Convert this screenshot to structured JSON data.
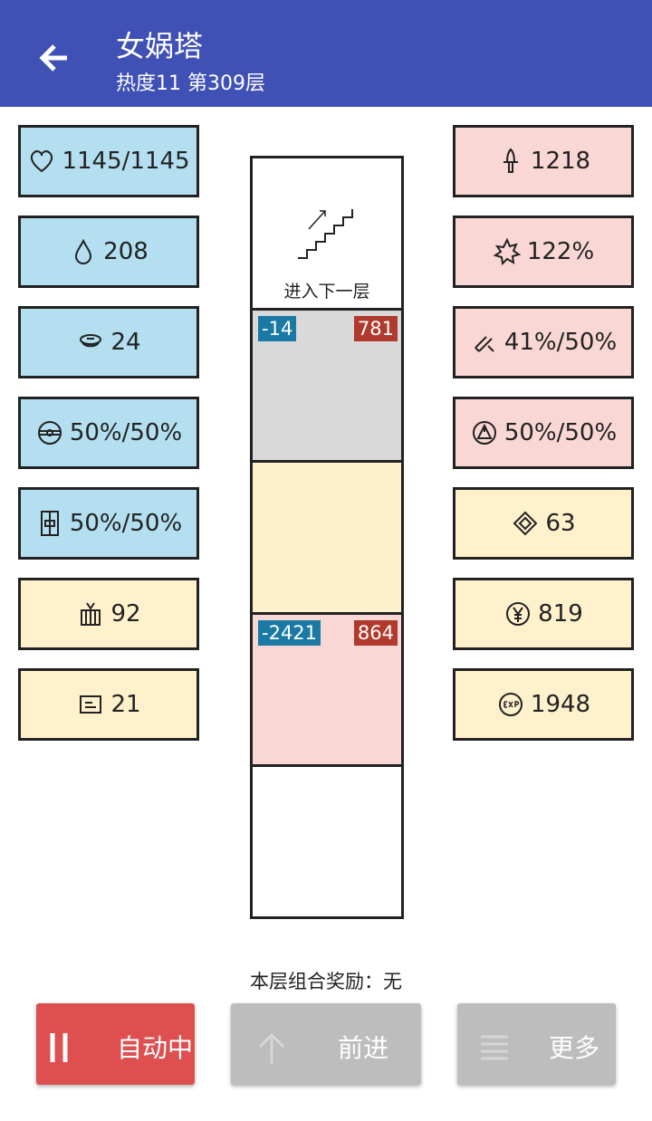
{
  "header": {
    "title": "女娲塔",
    "subtitle": "热度11 第309层"
  },
  "left_stats": [
    {
      "text": "1145/1145",
      "color": "#b3dff0"
    },
    {
      "text": "208",
      "color": "#b3dff0"
    },
    {
      "text": "24",
      "color": "#b3dff0"
    },
    {
      "text": "50%/50%",
      "color": "#b3dff0"
    },
    {
      "text": "50%/50%",
      "color": "#b3dff0"
    },
    {
      "text": "92",
      "color": "#fff1cc"
    },
    {
      "text": "21",
      "color": "#fff1cc"
    }
  ],
  "right_stats": [
    {
      "text": "1218",
      "color": "#f9d7d5"
    },
    {
      "text": "122%",
      "color": "#f9d7d5"
    },
    {
      "text": "41%/50%",
      "color": "#f9d7d5"
    },
    {
      "text": "50%/50%",
      "color": "#f9d7d5"
    },
    {
      "text": "63",
      "color": "#fff1cc"
    },
    {
      "text": "819",
      "color": "#fff1cc"
    },
    {
      "text": "1948",
      "color": "#fff1cc"
    }
  ],
  "tower": {
    "cells": [
      {
        "label": "进入下一层",
        "color": "#ffffff"
      },
      {
        "color": "#d9d9d9",
        "left_badge": "-14",
        "right_badge": "781"
      },
      {
        "color": "#fff0cc"
      },
      {
        "color": "#f8d7d4",
        "left_badge": "-2421",
        "right_badge": "864"
      },
      {
        "color": "#ffffff"
      }
    ]
  },
  "footer": {
    "reward": "本层组合奖励：无",
    "buttons": [
      {
        "label": "自动中",
        "color": "#de5050"
      },
      {
        "label": "前进",
        "color": "#bdbdbd"
      },
      {
        "label": "更多",
        "color": "#bdbdbd"
      }
    ]
  }
}
